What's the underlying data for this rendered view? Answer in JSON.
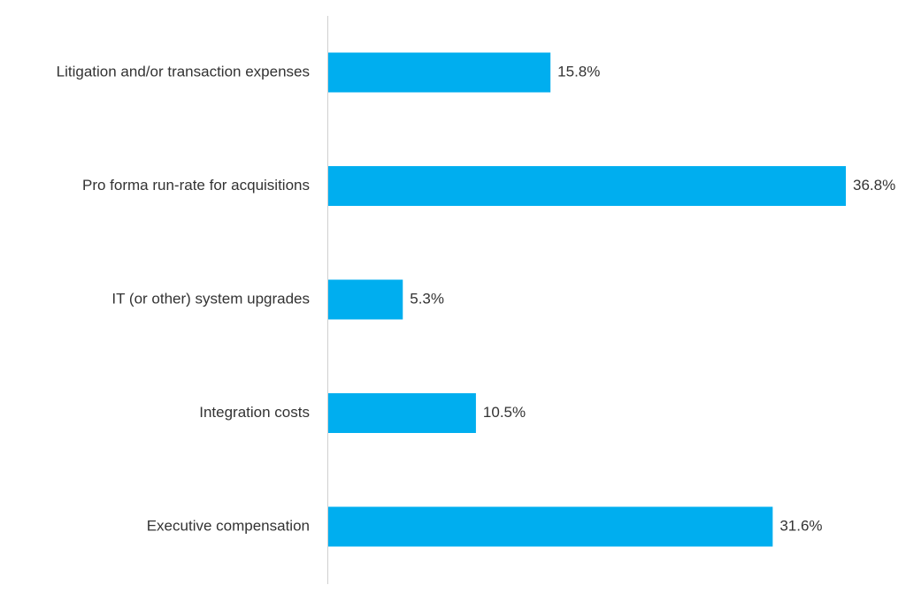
{
  "chart_data": {
    "type": "bar",
    "orientation": "horizontal",
    "categories": [
      "Litigation and/or transaction expenses",
      "Pro forma run-rate for acquisitions",
      "IT (or other) system upgrades",
      "Integration costs",
      "Executive compensation"
    ],
    "values": [
      15.8,
      36.8,
      5.3,
      10.5,
      31.6
    ],
    "value_labels": [
      "15.8%",
      "36.8%",
      "5.3%",
      "10.5%",
      "31.6%"
    ],
    "unit": "%",
    "title": "",
    "xlabel": "",
    "ylabel": "",
    "xlim": [
      0,
      36.8
    ],
    "grid": false,
    "legend": "none",
    "colors": {
      "bar": "#00AEEF",
      "axis": "#d0d0d0",
      "text": "#333333"
    }
  }
}
